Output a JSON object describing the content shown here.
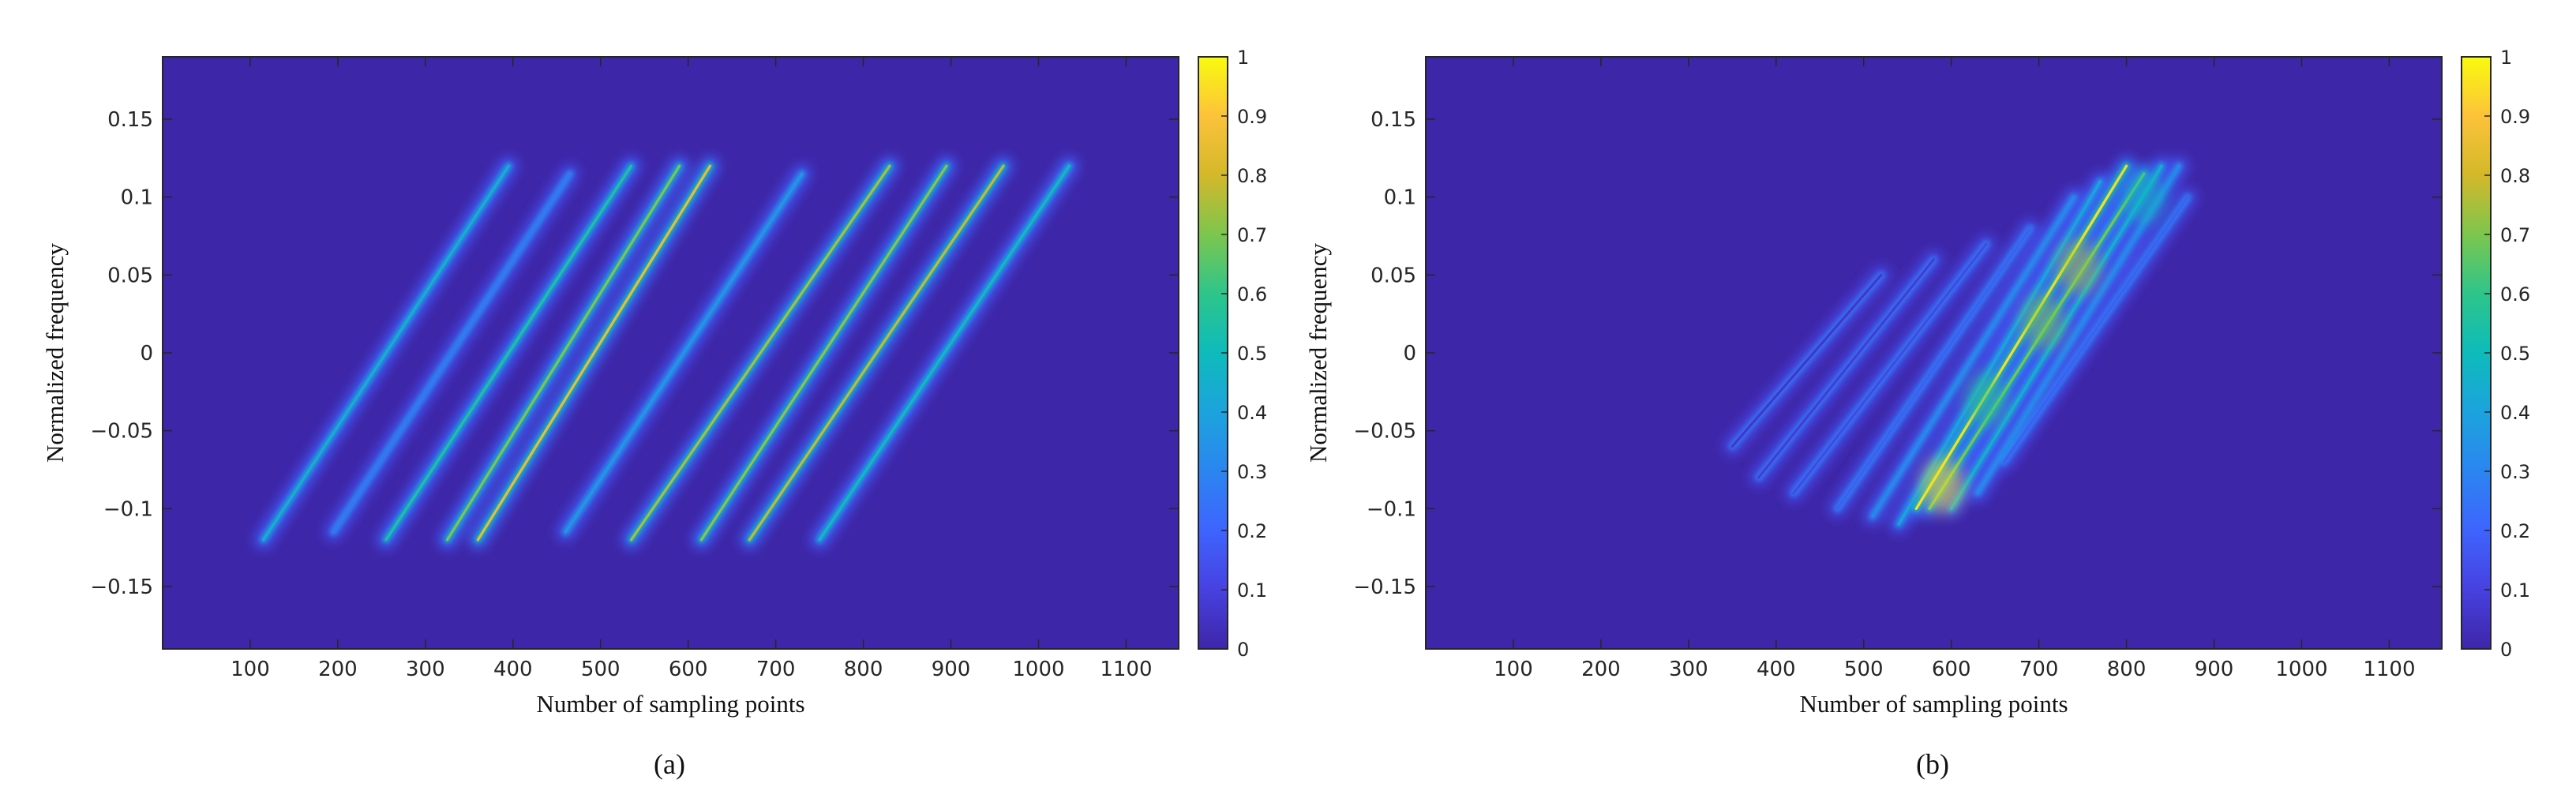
{
  "chart_data": [
    {
      "type": "heatmap",
      "panel_label": "(a)",
      "xlabel": "Number of sampling points",
      "ylabel": "Normalized frequency",
      "xlim": [
        0,
        1160
      ],
      "ylim": [
        -0.19,
        0.19
      ],
      "xticks": [
        100,
        200,
        300,
        400,
        500,
        600,
        700,
        800,
        900,
        1000,
        1100
      ],
      "yticks": [
        -0.15,
        -0.1,
        -0.05,
        0,
        0.05,
        0.1,
        0.15
      ],
      "ytick_labels": [
        "−0.15",
        "−0.1",
        "−0.05",
        "0",
        "0.05",
        "0.1",
        "0.15"
      ],
      "colorbar": {
        "range": [
          0,
          1
        ],
        "ticks": [
          "0",
          "0.1",
          "0.2",
          "0.3",
          "0.4",
          "0.5",
          "0.6",
          "0.7",
          "0.8",
          "0.9",
          "1"
        ]
      },
      "colormap": "parula",
      "background_color": "#3e26a8",
      "grid": false,
      "ridges": [
        {
          "x": [
            115,
            395
          ],
          "y": [
            -0.12,
            0.12
          ],
          "peak": 0.45
        },
        {
          "x": [
            195,
            465
          ],
          "y": [
            -0.115,
            0.115
          ],
          "peak": 0.25
        },
        {
          "x": [
            255,
            535
          ],
          "y": [
            -0.12,
            0.12
          ],
          "peak": 0.55
        },
        {
          "x": [
            325,
            590
          ],
          "y": [
            -0.12,
            0.12
          ],
          "peak": 0.7
        },
        {
          "x": [
            360,
            625
          ],
          "y": [
            -0.12,
            0.12
          ],
          "peak": 0.85
        },
        {
          "x": [
            460,
            730
          ],
          "y": [
            -0.115,
            0.115
          ],
          "peak": 0.35
        },
        {
          "x": [
            535,
            830
          ],
          "y": [
            -0.12,
            0.12
          ],
          "peak": 0.75
        },
        {
          "x": [
            615,
            895
          ],
          "y": [
            -0.12,
            0.12
          ],
          "peak": 0.72
        },
        {
          "x": [
            670,
            960
          ],
          "y": [
            -0.12,
            0.12
          ],
          "peak": 0.78
        },
        {
          "x": [
            750,
            1035
          ],
          "y": [
            -0.12,
            0.12
          ],
          "peak": 0.5
        }
      ]
    },
    {
      "type": "heatmap",
      "panel_label": "(b)",
      "xlabel": "Number of sampling points",
      "ylabel": "Normalized frequency",
      "xlim": [
        0,
        1160
      ],
      "ylim": [
        -0.19,
        0.19
      ],
      "xticks": [
        100,
        200,
        300,
        400,
        500,
        600,
        700,
        800,
        900,
        1000,
        1100
      ],
      "yticks": [
        -0.15,
        -0.1,
        -0.05,
        0,
        0.05,
        0.1,
        0.15
      ],
      "ytick_labels": [
        "−0.15",
        "−0.1",
        "−0.05",
        "0",
        "0.05",
        "0.1",
        "0.15"
      ],
      "colorbar": {
        "range": [
          0,
          1
        ],
        "ticks": [
          "0",
          "0.1",
          "0.2",
          "0.3",
          "0.4",
          "0.5",
          "0.6",
          "0.7",
          "0.8",
          "0.9",
          "1"
        ]
      },
      "colormap": "parula",
      "background_color": "#3e26a8",
      "grid": false,
      "ridges": [
        {
          "x": [
            350,
            520
          ],
          "y": [
            -0.06,
            0.05
          ],
          "peak": 0.06
        },
        {
          "x": [
            380,
            580
          ],
          "y": [
            -0.08,
            0.06
          ],
          "peak": 0.08
        },
        {
          "x": [
            420,
            640
          ],
          "y": [
            -0.09,
            0.07
          ],
          "peak": 0.12
        },
        {
          "x": [
            470,
            690
          ],
          "y": [
            -0.1,
            0.08
          ],
          "peak": 0.18
        },
        {
          "x": [
            510,
            740
          ],
          "y": [
            -0.105,
            0.1
          ],
          "peak": 0.3
        },
        {
          "x": [
            540,
            770
          ],
          "y": [
            -0.11,
            0.11
          ],
          "peak": 0.4
        },
        {
          "x": [
            560,
            800
          ],
          "y": [
            -0.1,
            0.12
          ],
          "peak": 0.95
        },
        {
          "x": [
            575,
            820
          ],
          "y": [
            -0.1,
            0.115
          ],
          "peak": 0.7
        },
        {
          "x": [
            600,
            840
          ],
          "y": [
            -0.1,
            0.12
          ],
          "peak": 0.45
        },
        {
          "x": [
            630,
            860
          ],
          "y": [
            -0.09,
            0.12
          ],
          "peak": 0.3
        },
        {
          "x": [
            660,
            870
          ],
          "y": [
            -0.07,
            0.1
          ],
          "peak": 0.18
        }
      ],
      "hotspots": [
        {
          "x": 590,
          "y": -0.085,
          "value": 0.95
        },
        {
          "x": 640,
          "y": -0.03,
          "value": 0.6
        },
        {
          "x": 705,
          "y": 0.02,
          "value": 0.7
        },
        {
          "x": 745,
          "y": 0.055,
          "value": 0.75
        },
        {
          "x": 820,
          "y": 0.1,
          "value": 0.5
        }
      ]
    }
  ]
}
